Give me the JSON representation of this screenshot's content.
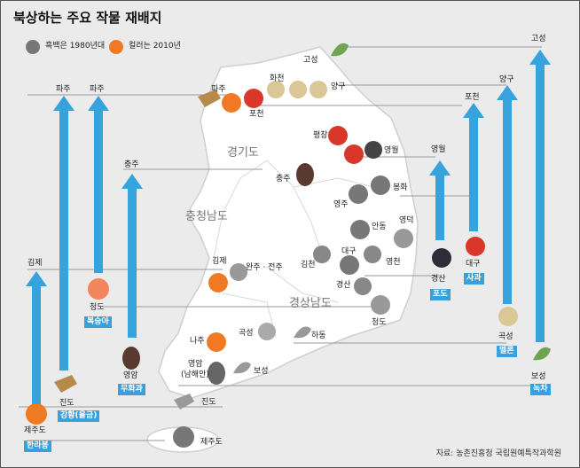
{
  "title": "북상하는 주요 작물 재배지",
  "legend": {
    "bw_label": "흑백은 1980년대",
    "color_label": "컬러는 2010년"
  },
  "provinces": [
    "경기도",
    "충청남도",
    "경상남도"
  ],
  "crops": [
    {
      "name": "한라봉",
      "from": "제주도",
      "to": "김제"
    },
    {
      "name": "강황(울금)",
      "from": "진도",
      "to": "파주"
    },
    {
      "name": "복숭아",
      "from": "청도",
      "to": "파주"
    },
    {
      "name": "무화과",
      "from": "영암",
      "to": "충주"
    },
    {
      "name": "포도",
      "from": "경산",
      "to": "영월"
    },
    {
      "name": "사과",
      "from": "대구",
      "to": "포천"
    },
    {
      "name": "멜론",
      "from": "곡성",
      "to": "양구"
    },
    {
      "name": "녹차",
      "from": "보성",
      "to": "고성"
    }
  ],
  "place_labels": [
    "고성",
    "화천",
    "양구",
    "파주",
    "포천",
    "평창",
    "영월",
    "충주",
    "봉화",
    "영주",
    "안동",
    "영덕",
    "대구",
    "김천",
    "영천",
    "경산",
    "김제",
    "완주 · 전주",
    "청도",
    "나주",
    "영암",
    "(남해안)",
    "곡성",
    "하동",
    "보성",
    "진도",
    "제주도"
  ],
  "source": "자료: 농촌진흥청 국립원예특작과학원",
  "colors": {
    "arrow": "#36a3dd",
    "badge": "#3aa0dc",
    "map_fill": "#ffffff",
    "background": "#ebebeb"
  }
}
